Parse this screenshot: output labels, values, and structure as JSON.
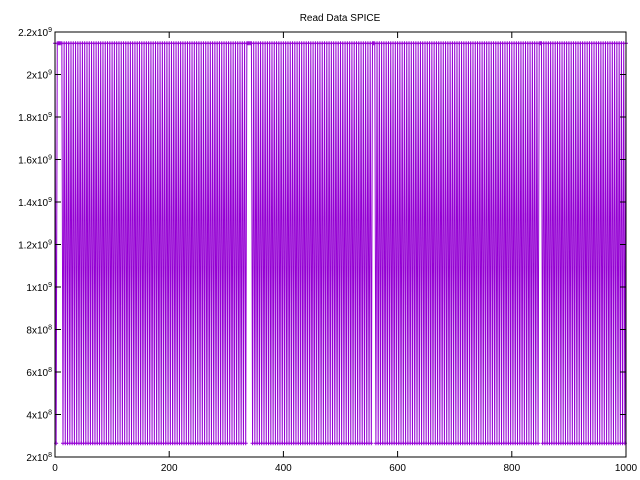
{
  "chart_data": {
    "type": "line",
    "title": "Read Data SPICE",
    "xlabel": "",
    "ylabel": "",
    "xlim": [
      0,
      1000
    ],
    "ylim": [
      200000000,
      2200000000
    ],
    "grid": false,
    "legend_position": "top-right",
    "x_ticks": [
      {
        "value": 0,
        "label": "0"
      },
      {
        "value": 200,
        "label": "200"
      },
      {
        "value": 400,
        "label": "400"
      },
      {
        "value": 600,
        "label": "600"
      },
      {
        "value": 800,
        "label": "800"
      },
      {
        "value": 1000,
        "label": "1000"
      }
    ],
    "y_ticks": [
      {
        "value": 200000000,
        "mant": "2x10",
        "exp": "8"
      },
      {
        "value": 400000000,
        "mant": "4x10",
        "exp": "8"
      },
      {
        "value": 600000000,
        "mant": "6x10",
        "exp": "8"
      },
      {
        "value": 800000000,
        "mant": "8x10",
        "exp": "8"
      },
      {
        "value": 1000000000,
        "mant": "1x10",
        "exp": "9"
      },
      {
        "value": 1200000000,
        "mant": "1.2x10",
        "exp": "9"
      },
      {
        "value": 1400000000,
        "mant": "1.4x10",
        "exp": "9"
      },
      {
        "value": 1600000000,
        "mant": "1.6x10",
        "exp": "9"
      },
      {
        "value": 1800000000,
        "mant": "1.8x10",
        "exp": "9"
      },
      {
        "value": 2000000000,
        "mant": "2x10",
        "exp": "9"
      },
      {
        "value": 2200000000,
        "mant": "2.2x10",
        "exp": "9"
      }
    ],
    "series": [
      {
        "color": "#9400d3",
        "high": 2147000000,
        "low": 265000000,
        "x_range": [
          0,
          1000
        ],
        "step": 2,
        "high_runs": [
          [
            4,
            10
          ],
          [
            337,
            342
          ],
          [
            556,
            560
          ],
          [
            847,
            852
          ]
        ],
        "description": "alternates between low and high value every step"
      }
    ]
  }
}
